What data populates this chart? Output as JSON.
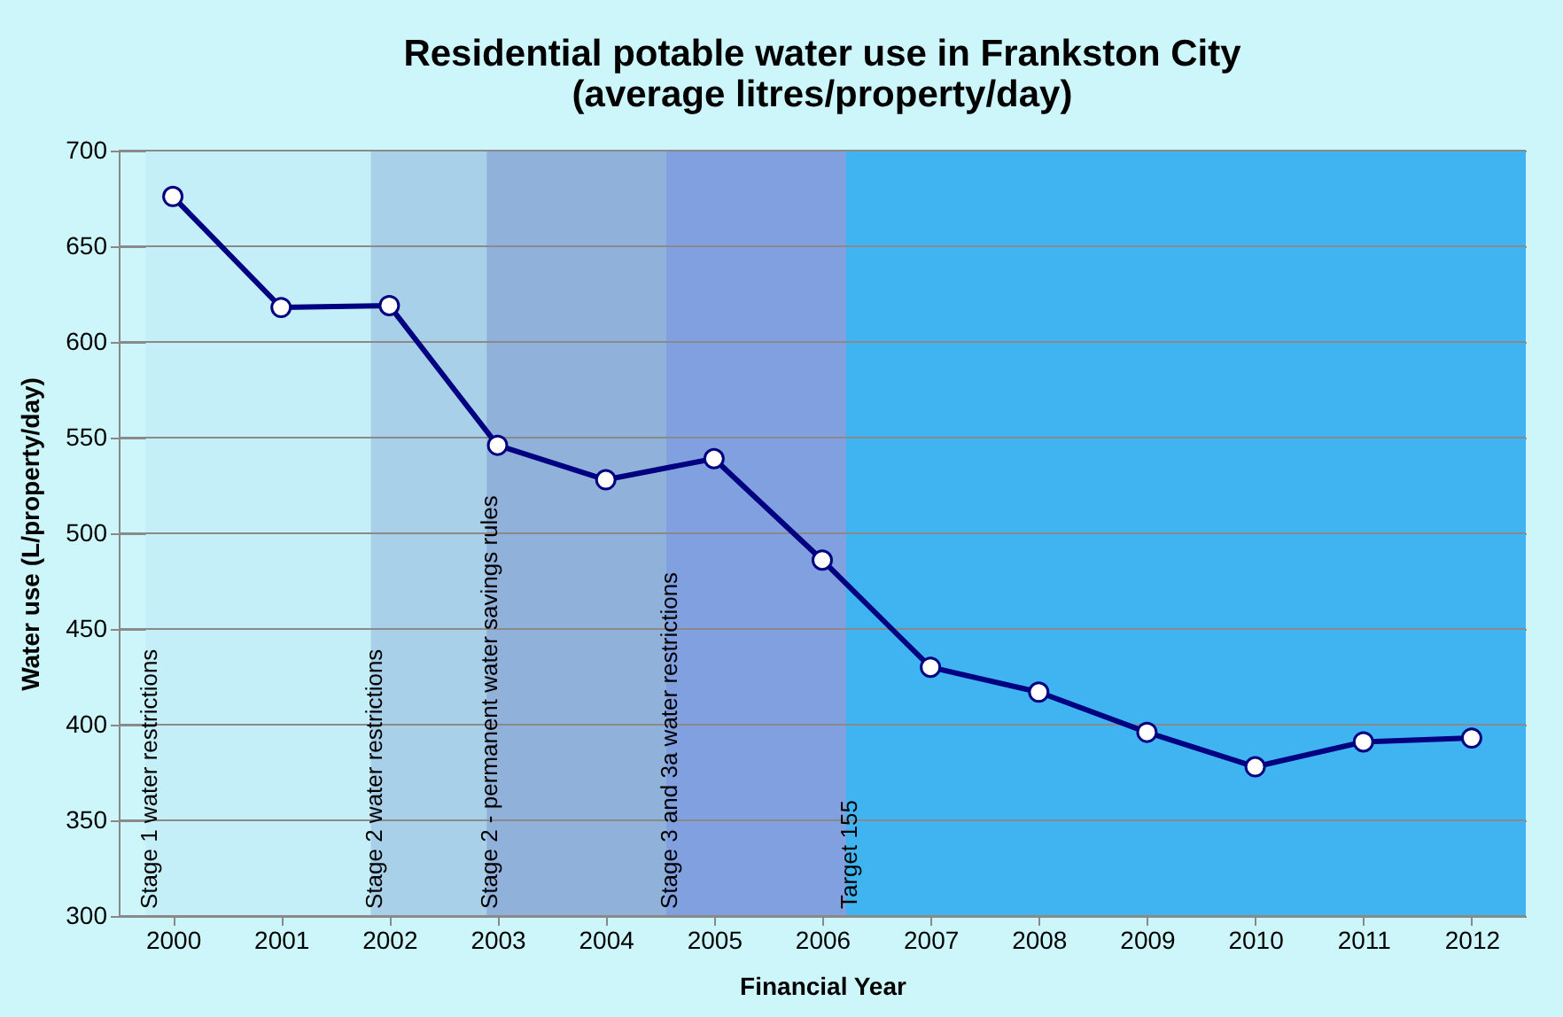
{
  "chart_data": {
    "type": "line",
    "title": [
      "Residential  potable water use in Frankston City",
      "(average litres/property/day)"
    ],
    "xlabel": "Financial Year",
    "ylabel": "Water use (L/property/day)",
    "x": [
      2000,
      2001,
      2002,
      2003,
      2004,
      2005,
      2006,
      2007,
      2008,
      2009,
      2010,
      2011,
      2012
    ],
    "series": [
      {
        "color": "#000080",
        "values": [
          676,
          618,
          619,
          546,
          528,
          539,
          486,
          430,
          417,
          396,
          378,
          391,
          393
        ]
      }
    ],
    "xlim": [
      1999.5,
      2012.5
    ],
    "xticks": [
      2000,
      2001,
      2002,
      2003,
      2004,
      2005,
      2006,
      2007,
      2008,
      2009,
      2010,
      2011,
      2012
    ],
    "ylim": [
      300,
      700
    ],
    "yticks": [
      300,
      350,
      400,
      450,
      500,
      550,
      600,
      650,
      700
    ],
    "bands": [
      {
        "axis": "x",
        "from": 1999.75,
        "to": 2012.5,
        "label": "Stage 1 water restrictions",
        "color": "#c4eef8"
      },
      {
        "axis": "x",
        "from": 2001.83,
        "to": 2012.5,
        "label": "Stage 2 water restrictions",
        "color": "#a8d0e8"
      },
      {
        "axis": "x",
        "from": 2002.9,
        "to": 2012.5,
        "label": "Stage 2 - permanent  water savings rules",
        "color": "#90b2da"
      },
      {
        "axis": "x",
        "from": 2004.56,
        "to": 2012.5,
        "label": "Stage 3 and  3a water restrictions",
        "color": "#80a0e0"
      },
      {
        "axis": "x",
        "from": 2006.22,
        "to": 2012.5,
        "label": "Target 155",
        "color": "#40b4f0"
      }
    ],
    "grid": "y",
    "marker": "circle",
    "line_style": "solid"
  }
}
